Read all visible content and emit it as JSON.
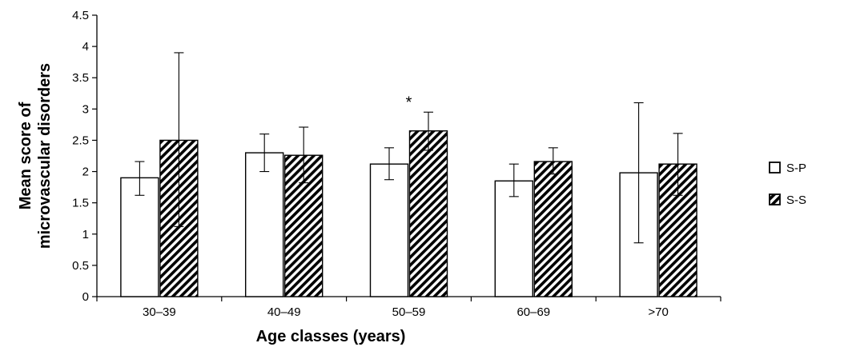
{
  "chart_data": {
    "type": "bar",
    "title": "",
    "xlabel": "Age classes (years)",
    "ylabel_lines": [
      "Mean score of",
      "microvascular disorders"
    ],
    "ylim": [
      0,
      4.5
    ],
    "yticks": [
      "0",
      "0.5",
      "1",
      "1.5",
      "2",
      "2.5",
      "3",
      "3.5",
      "4",
      "4.5"
    ],
    "categories": [
      "30–39",
      "40–49",
      "50–59",
      "60–69",
      ">70"
    ],
    "series": [
      {
        "name": "S-P",
        "pattern": "plain",
        "values": [
          1.9,
          2.3,
          2.12,
          1.85,
          1.98
        ],
        "err_low": [
          1.62,
          2.0,
          1.87,
          1.6,
          0.86
        ],
        "err_high": [
          2.16,
          2.6,
          2.38,
          2.12,
          3.1
        ]
      },
      {
        "name": "S-S",
        "pattern": "hatched",
        "values": [
          2.5,
          2.26,
          2.65,
          2.16,
          2.12
        ],
        "err_low": [
          1.12,
          1.82,
          2.34,
          1.96,
          1.62
        ],
        "err_high": [
          3.9,
          2.71,
          2.95,
          2.38,
          2.61
        ]
      }
    ],
    "annotations": [
      {
        "text": "*",
        "category": "50–59",
        "value": 3.2
      }
    ],
    "legend_placement": "right",
    "grid": false
  }
}
